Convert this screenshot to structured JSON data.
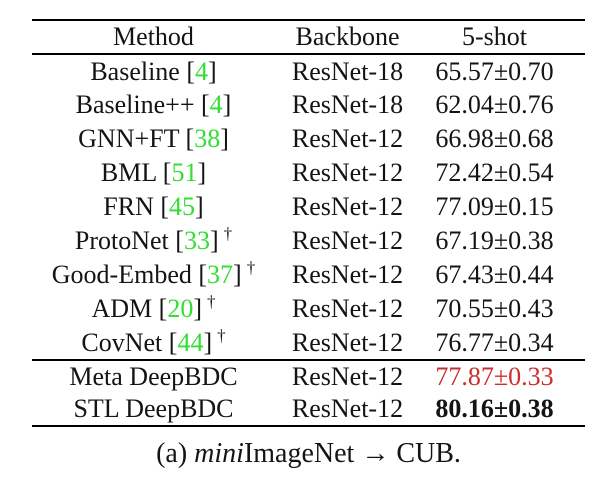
{
  "colors": {
    "citation_green": "#33dd33",
    "highlight_red": "#cd2d2d",
    "text": "#141414"
  },
  "table": {
    "marks": {
      "citation_open": "[",
      "citation_close": "]",
      "dagger_symbol": "†"
    },
    "columns": {
      "method": "Method",
      "backbone": "Backbone",
      "shot5": "5-shot"
    },
    "rows": [
      {
        "method": "Baseline",
        "cite": "4",
        "dagger": false,
        "backbone": "ResNet-18",
        "value": "65.57±0.70",
        "style": "normal",
        "group": "main"
      },
      {
        "method": "Baseline++",
        "cite": "4",
        "dagger": false,
        "backbone": "ResNet-18",
        "value": "62.04±0.76",
        "style": "normal",
        "group": "main"
      },
      {
        "method": "GNN+FT",
        "cite": "38",
        "dagger": false,
        "backbone": "ResNet-12",
        "value": "66.98±0.68",
        "style": "normal",
        "group": "main"
      },
      {
        "method": "BML",
        "cite": "51",
        "dagger": false,
        "backbone": "ResNet-12",
        "value": "72.42±0.54",
        "style": "normal",
        "group": "main"
      },
      {
        "method": "FRN",
        "cite": "45",
        "dagger": false,
        "backbone": "ResNet-12",
        "value": "77.09±0.15",
        "style": "normal",
        "group": "main"
      },
      {
        "method": "ProtoNet",
        "cite": "33",
        "dagger": true,
        "backbone": "ResNet-12",
        "value": "67.19±0.38",
        "style": "normal",
        "group": "main"
      },
      {
        "method": "Good-Embed",
        "cite": "37",
        "dagger": true,
        "backbone": "ResNet-12",
        "value": "67.43±0.44",
        "style": "normal",
        "group": "main"
      },
      {
        "method": "ADM",
        "cite": "20",
        "dagger": true,
        "backbone": "ResNet-12",
        "value": "70.55±0.43",
        "style": "normal",
        "group": "main"
      },
      {
        "method": "CovNet",
        "cite": "44",
        "dagger": true,
        "backbone": "ResNet-12",
        "value": "76.77±0.34",
        "style": "normal",
        "group": "main"
      },
      {
        "method": "Meta DeepBDC",
        "cite": null,
        "dagger": false,
        "backbone": "ResNet-12",
        "value": "77.87±0.33",
        "style": "red",
        "group": "ours"
      },
      {
        "method": "STL DeepBDC",
        "cite": null,
        "dagger": false,
        "backbone": "ResNet-12",
        "value": "80.16±0.38",
        "style": "bold",
        "group": "ours"
      }
    ]
  },
  "caption": {
    "prefix": "(a) ",
    "italic": "mini",
    "mid": "ImageNet",
    "arrow": " → ",
    "suffix": "CUB."
  }
}
